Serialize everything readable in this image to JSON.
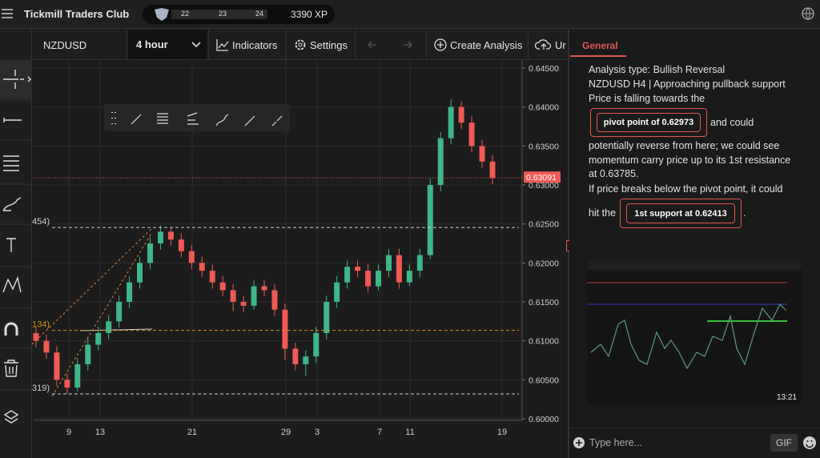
{
  "header": {
    "title": "Tickmill Traders Club",
    "levels": [
      "22",
      "23",
      "24"
    ],
    "xp": "3390 XP"
  },
  "toolbar": {
    "symbol": "NZDUSD",
    "interval": "4 hour",
    "indicators": "Indicators",
    "settings": "Settings",
    "create": "Create Analysis",
    "upload": "Ur"
  },
  "panel": {
    "tab": "General",
    "lines": [
      "Analysis type: Bullish Reversal",
      "NZDUSD H4 | Approaching pullback support",
      "Price is falling towards the"
    ],
    "badge1": "pivot point of 0.62973",
    "after_badge1": "and could",
    "lines2": [
      "potentially reverse from here; we could see",
      "momentum carry price up to its 1st resistance",
      "at 0.63785.",
      "If price breaks below the pivot point, it could"
    ],
    "before_badge2": "hit the",
    "badge2": "1st support at 0.62413",
    "after_badge2": ".",
    "thumbnail_time": "13:21",
    "input_placeholder": "Type here...",
    "gif": "GIF"
  },
  "chart_data": {
    "type": "candlestick",
    "up_color": "#3fb68b",
    "down_color": "#ef5a55",
    "ylim": [
      0.6,
      0.645
    ],
    "yticks": [
      {
        "value": 0.645,
        "label": "0.64500"
      },
      {
        "value": 0.64,
        "label": "0.64000"
      },
      {
        "value": 0.635,
        "label": "0.63500"
      },
      {
        "value": 0.63,
        "label": "0.63000"
      },
      {
        "value": 0.625,
        "label": "0.62500"
      },
      {
        "value": 0.62,
        "label": "0.62000"
      },
      {
        "value": 0.615,
        "label": "0.61500"
      },
      {
        "value": 0.61,
        "label": "0.61000"
      },
      {
        "value": 0.605,
        "label": "0.60500"
      },
      {
        "value": 0.6,
        "label": "0.60000"
      }
    ],
    "xticks": [
      "9",
      "13",
      "21",
      "29",
      "3",
      "7",
      "11",
      "19"
    ],
    "current_price": 0.63091,
    "levels": [
      {
        "value": 0.62454,
        "label": "454)",
        "color": "#cfcfcf"
      },
      {
        "value": 0.61134,
        "label": "134)",
        "color": "#d4901e"
      },
      {
        "value": 0.60319,
        "label": "319)",
        "color": "#cfcfcf"
      }
    ],
    "candles": [
      [
        0.611,
        0.6118,
        0.6092,
        0.61
      ],
      [
        0.61,
        0.6108,
        0.6077,
        0.6085
      ],
      [
        0.6085,
        0.6093,
        0.6042,
        0.605
      ],
      [
        0.605,
        0.6058,
        0.6032,
        0.604
      ],
      [
        0.604,
        0.6078,
        0.6035,
        0.607
      ],
      [
        0.607,
        0.6103,
        0.6062,
        0.6095
      ],
      [
        0.6095,
        0.6118,
        0.6088,
        0.611
      ],
      [
        0.611,
        0.6133,
        0.6102,
        0.6125
      ],
      [
        0.6125,
        0.6158,
        0.6117,
        0.615
      ],
      [
        0.615,
        0.6183,
        0.6142,
        0.6175
      ],
      [
        0.6175,
        0.6208,
        0.6167,
        0.62
      ],
      [
        0.62,
        0.6233,
        0.6192,
        0.6225
      ],
      [
        0.6225,
        0.6248,
        0.6217,
        0.624
      ],
      [
        0.624,
        0.6246,
        0.6222,
        0.623
      ],
      [
        0.623,
        0.6238,
        0.6207,
        0.6215
      ],
      [
        0.6215,
        0.6223,
        0.6192,
        0.62
      ],
      [
        0.62,
        0.6208,
        0.6182,
        0.619
      ],
      [
        0.619,
        0.6198,
        0.6167,
        0.6175
      ],
      [
        0.6175,
        0.6183,
        0.6157,
        0.6165
      ],
      [
        0.6165,
        0.6173,
        0.6138,
        0.615
      ],
      [
        0.615,
        0.6158,
        0.6137,
        0.6145
      ],
      [
        0.6145,
        0.6178,
        0.614,
        0.617
      ],
      [
        0.617,
        0.6178,
        0.6157,
        0.6165
      ],
      [
        0.6165,
        0.6173,
        0.6132,
        0.614
      ],
      [
        0.614,
        0.6148,
        0.6075,
        0.609
      ],
      [
        0.609,
        0.6098,
        0.6062,
        0.607
      ],
      [
        0.607,
        0.6088,
        0.6055,
        0.608
      ],
      [
        0.608,
        0.6118,
        0.6072,
        0.611
      ],
      [
        0.611,
        0.6158,
        0.6102,
        0.615
      ],
      [
        0.615,
        0.6183,
        0.6142,
        0.6175
      ],
      [
        0.6175,
        0.6203,
        0.6167,
        0.6195
      ],
      [
        0.6195,
        0.6203,
        0.6182,
        0.619
      ],
      [
        0.619,
        0.6198,
        0.6162,
        0.617
      ],
      [
        0.617,
        0.6198,
        0.6165,
        0.619
      ],
      [
        0.619,
        0.6218,
        0.6182,
        0.621
      ],
      [
        0.621,
        0.6218,
        0.6167,
        0.6175
      ],
      [
        0.6175,
        0.6198,
        0.617,
        0.619
      ],
      [
        0.619,
        0.6218,
        0.6182,
        0.621
      ],
      [
        0.621,
        0.6308,
        0.6205,
        0.63
      ],
      [
        0.63,
        0.6368,
        0.6292,
        0.636
      ],
      [
        0.636,
        0.641,
        0.6352,
        0.64
      ],
      [
        0.64,
        0.6408,
        0.6372,
        0.638
      ],
      [
        0.638,
        0.6388,
        0.6342,
        0.635
      ],
      [
        0.635,
        0.6358,
        0.6322,
        0.633
      ],
      [
        0.633,
        0.6338,
        0.6301,
        0.6309
      ]
    ]
  }
}
